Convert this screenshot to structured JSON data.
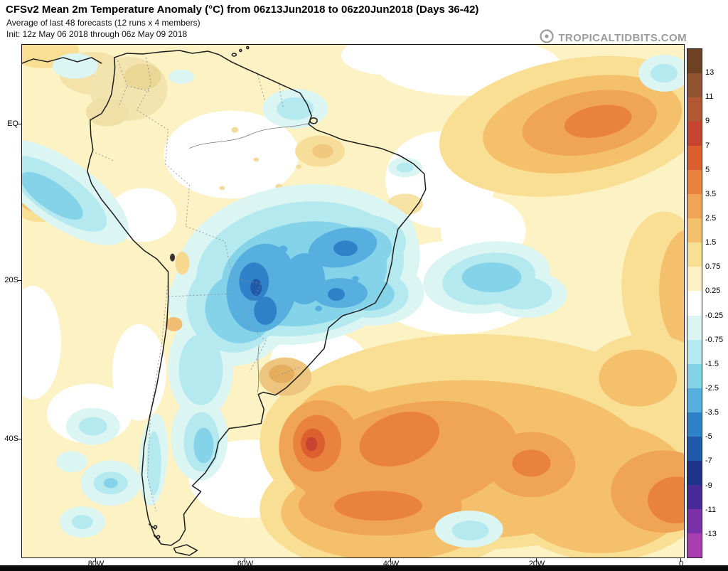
{
  "header": {
    "title": "CFSv2 Mean 2m Temperature Anomaly (°C) from 06z13Jun2018 to 06z20Jun2018 (Days 36-42)",
    "subtitle": "Average of last 48 forecasts (12 runs x 4 members)",
    "init_line": "Init: 12z May 06 2018 through 06z May 09 2018",
    "watermark": "TROPICALTIDBITS.COM"
  },
  "map": {
    "axes": {
      "y": [
        "EQ",
        "20S",
        "40S"
      ],
      "x": [
        "80W",
        "60W",
        "40W",
        "20W",
        "0"
      ]
    }
  },
  "colorbar": {
    "labels": [
      "13",
      "11",
      "9",
      "7",
      "5",
      "3.5",
      "2.5",
      "1.5",
      "0.75",
      "0.25",
      "-0.25",
      "-0.75",
      "-1.5",
      "-2.5",
      "-3.5",
      "-5",
      "-7",
      "-9",
      "-11",
      "-13"
    ],
    "colors": [
      "#6f4123",
      "#915430",
      "#b25733",
      "#c74430",
      "#dc5f30",
      "#e8823c",
      "#f0a455",
      "#f4c06c",
      "#f8df94",
      "#fcf2c4",
      "#ffffff",
      "#dbf5f3",
      "#b4e9ef",
      "#85d3e8",
      "#57afdf",
      "#2f82c8",
      "#2058aa",
      "#1c3387",
      "#472a96",
      "#7b31a6",
      "#a93eb0"
    ]
  },
  "chart_data": {
    "type": "heatmap",
    "title": "CFSv2 Mean 2m Temperature Anomaly (°C) from 06z13Jun2018 to 06z20Jun2018 (Days 36-42)",
    "subtitle": "Average of last 48 forecasts (12 runs x 4 members)",
    "init": "Init: 12z May 06 2018 through 06z May 09 2018",
    "units": "°C",
    "x_ticks": [
      "80W",
      "60W",
      "40W",
      "20W",
      "0"
    ],
    "y_ticks": [
      "EQ",
      "20S",
      "40S"
    ],
    "levels": [
      13,
      11,
      9,
      7,
      5,
      3.5,
      2.5,
      1.5,
      0.75,
      0.25,
      -0.25,
      -0.75,
      -1.5,
      -2.5,
      -3.5,
      -5,
      -7,
      -9,
      -11,
      -13
    ],
    "legend_position": "right",
    "grid": false,
    "regions": [
      {
        "area": "central Brazil / Paraguay / Bolivia",
        "sign": "cold",
        "peak_value_c": -4
      },
      {
        "area": "southwest Atlantic off Uruguay / Argentina",
        "sign": "warm",
        "peak_value_c": 6
      },
      {
        "area": "tropical North Atlantic northeast of Brazil",
        "sign": "warm",
        "peak_value_c": 3.5
      },
      {
        "area": "central South Atlantic (mid-ocean patch)",
        "sign": "cold",
        "peak_value_c": -1.5
      },
      {
        "area": "southeast Pacific near Peru / Chile coast",
        "sign": "cold",
        "peak_value_c": -2
      },
      {
        "area": "Uruguay coastal strip",
        "sign": "warm",
        "peak_value_c": 2.5
      }
    ]
  }
}
